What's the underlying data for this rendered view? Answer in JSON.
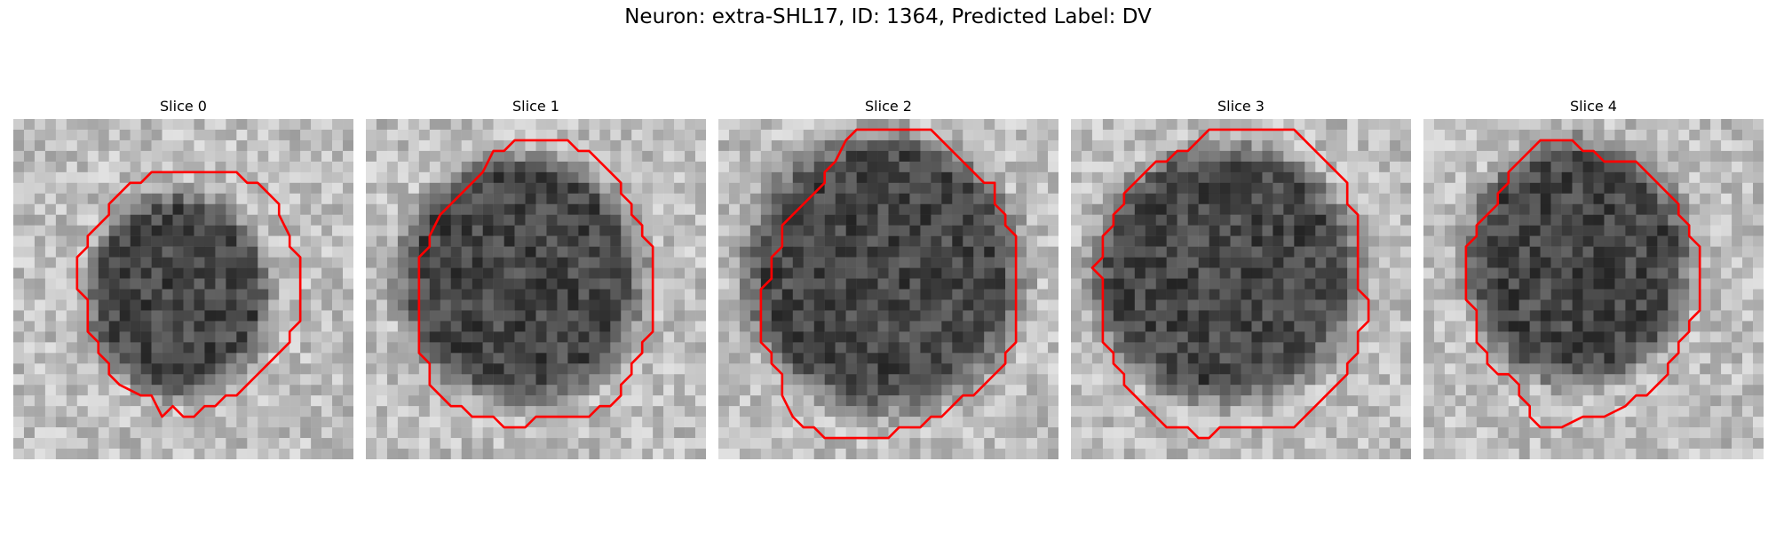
{
  "figure": {
    "title": "Neuron: extra-SHL17, ID: 1364, Predicted Label: DV"
  },
  "panels": [
    {
      "title": "Slice 0"
    },
    {
      "title": "Slice 1"
    },
    {
      "title": "Slice 2"
    },
    {
      "title": "Slice 3"
    },
    {
      "title": "Slice 4"
    }
  ],
  "style": {
    "contour_color": "#ff0000"
  }
}
